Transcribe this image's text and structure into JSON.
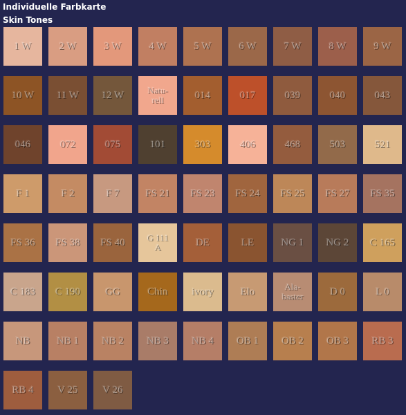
{
  "header": {
    "title": "Individuelle Farbkarte",
    "subtitle": "Skin Tones"
  },
  "swatches": [
    {
      "label": "1 W",
      "color": "#e6b69e"
    },
    {
      "label": "2 W",
      "color": "#d99d82"
    },
    {
      "label": "3 W",
      "color": "#e3987b"
    },
    {
      "label": "4 W",
      "color": "#c17f62"
    },
    {
      "label": "5 W",
      "color": "#ae7250"
    },
    {
      "label": "6 W",
      "color": "#9b6849"
    },
    {
      "label": "7 W",
      "color": "#8f5d45"
    },
    {
      "label": "8 W",
      "color": "#9c5f4b"
    },
    {
      "label": "9 W",
      "color": "#9b6545"
    },
    {
      "label": "10 W",
      "color": "#8d5425"
    },
    {
      "label": "11 W",
      "color": "#7a4f33"
    },
    {
      "label": "12 W",
      "color": "#74573b"
    },
    {
      "label": "Natu-\nrell",
      "color": "#f1a78d"
    },
    {
      "label": "014",
      "color": "#a35e2f"
    },
    {
      "label": "017",
      "color": "#bd502a"
    },
    {
      "label": "039",
      "color": "#8f5b3e"
    },
    {
      "label": "040",
      "color": "#8d5532"
    },
    {
      "label": "043",
      "color": "#85573b"
    },
    {
      "label": "046",
      "color": "#6f432c"
    },
    {
      "label": "072",
      "color": "#f1a58c"
    },
    {
      "label": "075",
      "color": "#a24b35"
    },
    {
      "label": "101",
      "color": "#4f4030"
    },
    {
      "label": "303",
      "color": "#d58b2c"
    },
    {
      "label": "406",
      "color": "#f6b298"
    },
    {
      "label": "468",
      "color": "#945c3e"
    },
    {
      "label": "503",
      "color": "#926a4a"
    },
    {
      "label": "521",
      "color": "#dfb98b"
    },
    {
      "label": "F 1",
      "color": "#ce9b6a"
    },
    {
      "label": "F 2",
      "color": "#c48b63"
    },
    {
      "label": "F 7",
      "color": "#c79980"
    },
    {
      "label": "FS 21",
      "color": "#c28464"
    },
    {
      "label": "FS 23",
      "color": "#c0856e"
    },
    {
      "label": "FS 24",
      "color": "#a0653e"
    },
    {
      "label": "FS 25",
      "color": "#bd8758"
    },
    {
      "label": "FS 27",
      "color": "#b87b5a"
    },
    {
      "label": "FS 35",
      "color": "#a57360"
    },
    {
      "label": "FS 36",
      "color": "#aa7245"
    },
    {
      "label": "FS 38",
      "color": "#cb9679"
    },
    {
      "label": "FS 40",
      "color": "#9a643d"
    },
    {
      "label": "G 111\nA",
      "color": "#e6c69b"
    },
    {
      "label": "DE",
      "color": "#a45f39"
    },
    {
      "label": "LE",
      "color": "#8a5430"
    },
    {
      "label": "NG 1",
      "color": "#6a4f43"
    },
    {
      "label": "NG 2",
      "color": "#5c4637"
    },
    {
      "label": "C 165",
      "color": "#cfa05d"
    },
    {
      "label": "C 183",
      "color": "#c9a58c"
    },
    {
      "label": "C 190",
      "color": "#b28f44"
    },
    {
      "label": "GG",
      "color": "#c8966d"
    },
    {
      "label": "Chin",
      "color": "#a5681c"
    },
    {
      "label": "ivory",
      "color": "#dbbb8e"
    },
    {
      "label": "Elo",
      "color": "#c79a73"
    },
    {
      "label": "Ala-\nbaster",
      "color": "#b88c73"
    },
    {
      "label": "D 0",
      "color": "#9c6a3c"
    },
    {
      "label": "L 0",
      "color": "#b88b6a"
    },
    {
      "label": "NB",
      "color": "#c7977b"
    },
    {
      "label": "NB 1",
      "color": "#b88064"
    },
    {
      "label": "NB 2",
      "color": "#b98263"
    },
    {
      "label": "NB 3",
      "color": "#a97c68"
    },
    {
      "label": "NB 4",
      "color": "#b57e67"
    },
    {
      "label": "OB 1",
      "color": "#ae7d55"
    },
    {
      "label": "OB 2",
      "color": "#b77f4e"
    },
    {
      "label": "OB 3",
      "color": "#b1764a"
    },
    {
      "label": "RB 3",
      "color": "#b96c4f"
    },
    {
      "label": "RB 4",
      "color": "#9e5d3e"
    },
    {
      "label": "V 25",
      "color": "#8b5f40"
    },
    {
      "label": "V 26",
      "color": "#7f5b43"
    }
  ]
}
